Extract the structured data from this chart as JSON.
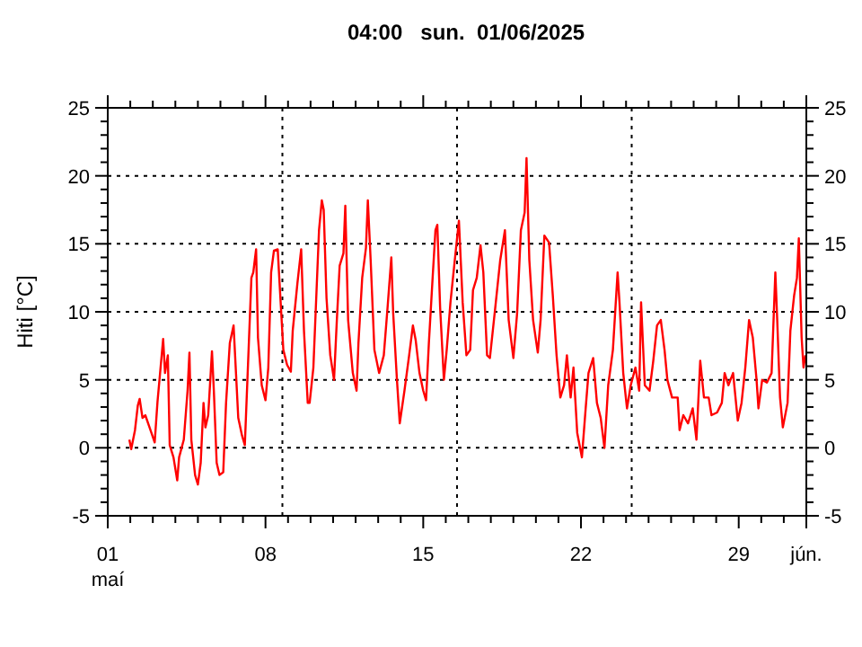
{
  "chart_data": {
    "type": "line",
    "title": "04:00   sun.  01/06/2025",
    "ylabel": "Hiti [°C]",
    "xlim": [
      "2025-05-01T00:00",
      "2025-06-01T00:00"
    ],
    "xticks": [
      {
        "value": "2025-05-01",
        "label": "01\nmaí"
      },
      {
        "value": "2025-05-02",
        "label": null
      },
      {
        "value": "2025-05-03",
        "label": null
      },
      {
        "value": "2025-05-04",
        "label": null
      },
      {
        "value": "2025-05-05",
        "label": null
      },
      {
        "value": "2025-05-06",
        "label": null
      },
      {
        "value": "2025-05-07",
        "label": null
      },
      {
        "value": "2025-05-08",
        "label": "08"
      },
      {
        "value": "2025-05-09",
        "label": null
      },
      {
        "value": "2025-05-10",
        "label": null
      },
      {
        "value": "2025-05-11",
        "label": null
      },
      {
        "value": "2025-05-12",
        "label": null
      },
      {
        "value": "2025-05-13",
        "label": null
      },
      {
        "value": "2025-05-14",
        "label": null
      },
      {
        "value": "2025-05-15",
        "label": "15"
      },
      {
        "value": "2025-05-16",
        "label": null
      },
      {
        "value": "2025-05-17",
        "label": null
      },
      {
        "value": "2025-05-18",
        "label": null
      },
      {
        "value": "2025-05-19",
        "label": null
      },
      {
        "value": "2025-05-20",
        "label": null
      },
      {
        "value": "2025-05-21",
        "label": null
      },
      {
        "value": "2025-05-22",
        "label": "22"
      },
      {
        "value": "2025-05-23",
        "label": null
      },
      {
        "value": "2025-05-24",
        "label": null
      },
      {
        "value": "2025-05-25",
        "label": null
      },
      {
        "value": "2025-05-26",
        "label": null
      },
      {
        "value": "2025-05-27",
        "label": null
      },
      {
        "value": "2025-05-28",
        "label": null
      },
      {
        "value": "2025-05-29",
        "label": "29"
      },
      {
        "value": "2025-05-30",
        "label": null
      },
      {
        "value": "2025-05-31",
        "label": null
      },
      {
        "value": "2025-06-01",
        "label": "jún."
      }
    ],
    "ylim": [
      -5,
      25
    ],
    "yticks": [
      -5,
      {
        "value": -4,
        "label": null
      },
      {
        "value": -3,
        "label": null
      },
      {
        "value": -2,
        "label": null
      },
      {
        "value": -1,
        "label": null
      },
      0,
      {
        "value": 1,
        "label": null
      },
      {
        "value": 2,
        "label": null
      },
      {
        "value": 3,
        "label": null
      },
      {
        "value": 4,
        "label": null
      },
      5,
      {
        "value": 6,
        "label": null
      },
      {
        "value": 7,
        "label": null
      },
      {
        "value": 8,
        "label": null
      },
      {
        "value": 9,
        "label": null
      },
      10,
      {
        "value": 11,
        "label": null
      },
      {
        "value": 12,
        "label": null
      },
      {
        "value": 13,
        "label": null
      },
      {
        "value": 14,
        "label": null
      },
      15,
      {
        "value": 16,
        "label": null
      },
      {
        "value": 17,
        "label": null
      },
      {
        "value": 18,
        "label": null
      },
      {
        "value": 19,
        "label": null
      },
      20,
      {
        "value": 21,
        "label": null
      },
      {
        "value": 22,
        "label": null
      },
      {
        "value": 23,
        "label": null
      },
      {
        "value": 24,
        "label": null
      },
      25
    ],
    "y2lim": [
      -5,
      25
    ],
    "y2ticks": [
      -5,
      0,
      5,
      10,
      15,
      20,
      25
    ],
    "grid": "y",
    "ref_lines": [
      {
        "axis": "x",
        "value": "2025-05-08T18:00",
        "line_style": "dotted"
      },
      {
        "axis": "x",
        "value": "2025-05-16T12:00",
        "line_style": "dotted"
      },
      {
        "axis": "x",
        "value": "2025-05-24T06:00",
        "line_style": "dotted"
      }
    ],
    "series": [
      {
        "color": "#ff0000",
        "x": [
          "2025-05-01T23:00",
          "2025-05-02T01:00",
          "2025-05-02T05:00",
          "2025-05-02T08:00",
          "2025-05-02T10:00",
          "2025-05-02T13:00",
          "2025-05-02T16:00",
          "2025-05-02T22:00",
          "2025-05-03T02:00",
          "2025-05-03T05:00",
          "2025-05-03T08:00",
          "2025-05-03T11:00",
          "2025-05-03T13:00",
          "2025-05-03T16:00",
          "2025-05-03T18:00",
          "2025-05-03T22:00",
          "2025-05-04T02:00",
          "2025-05-04T04:00",
          "2025-05-04T09:00",
          "2025-05-04T13:00",
          "2025-05-04T15:00",
          "2025-05-04T17:00",
          "2025-05-04T21:00",
          "2025-05-05T00:00",
          "2025-05-05T03:00",
          "2025-05-05T06:00",
          "2025-05-05T08:00",
          "2025-05-05T11:00",
          "2025-05-05T15:00",
          "2025-05-05T17:00",
          "2025-05-05T20:00",
          "2025-05-05T23:00",
          "2025-05-06T03:00",
          "2025-05-06T06:00",
          "2025-05-06T10:00",
          "2025-05-06T14:00",
          "2025-05-06T19:00",
          "2025-05-06T23:00",
          "2025-05-07T02:00",
          "2025-05-07T06:00",
          "2025-05-07T09:00",
          "2025-05-07T11:00",
          "2025-05-07T14:00",
          "2025-05-07T16:00",
          "2025-05-07T20:00",
          "2025-05-08T00:00",
          "2025-05-08T03:00",
          "2025-05-08T06:00",
          "2025-05-08T09:00",
          "2025-05-08T13:00",
          "2025-05-08T15:00",
          "2025-05-08T19:00",
          "2025-05-08T23:00",
          "2025-05-09T03:00",
          "2025-05-09T05:00",
          "2025-05-09T10:00",
          "2025-05-09T14:00",
          "2025-05-09T17:00",
          "2025-05-09T21:00",
          "2025-05-09T23:00",
          "2025-05-10T03:00",
          "2025-05-10T09:00",
          "2025-05-10T12:00",
          "2025-05-10T14:00",
          "2025-05-10T17:00",
          "2025-05-10T21:00",
          "2025-05-11T01:00",
          "2025-05-11T04:00",
          "2025-05-11T07:00",
          "2025-05-11T11:00",
          "2025-05-11T13:00",
          "2025-05-11T16:00",
          "2025-05-11T21:00",
          "2025-05-12T01:00",
          "2025-05-12T03:00",
          "2025-05-12T07:00",
          "2025-05-12T11:00",
          "2025-05-12T13:00",
          "2025-05-12T16:00",
          "2025-05-12T20:00",
          "2025-05-13T01:00",
          "2025-05-13T06:00",
          "2025-05-13T10:00",
          "2025-05-13T14:00",
          "2025-05-13T16:00",
          "2025-05-13T20:00",
          "2025-05-13T23:00",
          "2025-05-14T04:00",
          "2025-05-14T09:00",
          "2025-05-14T13:00",
          "2025-05-14T16:00",
          "2025-05-14T20:00",
          "2025-05-15T00:00",
          "2025-05-15T03:00",
          "2025-05-15T06:00",
          "2025-05-15T10:00",
          "2025-05-15T13:00",
          "2025-05-15T15:00",
          "2025-05-15T18:00",
          "2025-05-15T22:00",
          "2025-05-16T01:00",
          "2025-05-16T05:00",
          "2025-05-16T09:00",
          "2025-05-16T14:00",
          "2025-05-16T18:00",
          "2025-05-16T22:00",
          "2025-05-17T02:00",
          "2025-05-17T05:00",
          "2025-05-17T09:00",
          "2025-05-17T13:00",
          "2025-05-17T16:00",
          "2025-05-17T20:00",
          "2025-05-17T23:00",
          "2025-05-18T05:00",
          "2025-05-18T10:00",
          "2025-05-18T15:00",
          "2025-05-18T19:00",
          "2025-05-19T00:00",
          "2025-05-19T04:00",
          "2025-05-19T08:00",
          "2025-05-19T12:00",
          "2025-05-19T14:00",
          "2025-05-19T17:00",
          "2025-05-19T21:00",
          "2025-05-20T02:00",
          "2025-05-20T05:00",
          "2025-05-20T09:00",
          "2025-05-20T14:00",
          "2025-05-20T18:00",
          "2025-05-20T22:00",
          "2025-05-21T02:00",
          "2025-05-21T06:00",
          "2025-05-21T09:00",
          "2025-05-21T13:00",
          "2025-05-21T16:00",
          "2025-05-21T20:00",
          "2025-05-22T01:00",
          "2025-05-22T05:00",
          "2025-05-22T08:00",
          "2025-05-22T13:00",
          "2025-05-22T17:00",
          "2025-05-22T21:00",
          "2025-05-23T01:00",
          "2025-05-23T05:00",
          "2025-05-23T10:00",
          "2025-05-23T15:00",
          "2025-05-23T17:00",
          "2025-05-23T21:00",
          "2025-05-24T01:00",
          "2025-05-24T05:00",
          "2025-05-24T10:00",
          "2025-05-24T14:00",
          "2025-05-24T16:00",
          "2025-05-24T20:00",
          "2025-05-25T01:00",
          "2025-05-25T05:00",
          "2025-05-25T09:00",
          "2025-05-25T13:00",
          "2025-05-25T17:00",
          "2025-05-25T20:00",
          "2025-05-26T01:00",
          "2025-05-26T07:00",
          "2025-05-26T09:00",
          "2025-05-26T13:00",
          "2025-05-26T18:00",
          "2025-05-26T23:00",
          "2025-05-27T03:00",
          "2025-05-27T07:00",
          "2025-05-27T11:00",
          "2025-05-27T16:00",
          "2025-05-27T19:00",
          "2025-05-28T01:00",
          "2025-05-28T06:00",
          "2025-05-28T09:00",
          "2025-05-28T13:00",
          "2025-05-28T18:00",
          "2025-05-28T23:00",
          "2025-05-29T03:00",
          "2025-05-29T07:00",
          "2025-05-29T11:00",
          "2025-05-29T15:00",
          "2025-05-29T19:00",
          "2025-05-29T21:00",
          "2025-05-30T01:00",
          "2025-05-30T06:00",
          "2025-05-30T11:00",
          "2025-05-30T15:00",
          "2025-05-30T17:00",
          "2025-05-30T20:00",
          "2025-05-30T23:00",
          "2025-05-31T04:00",
          "2025-05-31T07:00",
          "2025-05-31T11:00",
          "2025-05-31T14:00",
          "2025-05-31T16:00",
          "2025-05-31T19:00",
          "2025-05-31T21:00",
          "2025-05-31T23:00"
        ],
        "values": [
          0.6,
          -0.1,
          1.3,
          3.1,
          3.6,
          2.2,
          2.4,
          1.2,
          0.4,
          3.4,
          5.7,
          8.0,
          5.5,
          6.8,
          0.2,
          -0.7,
          -2.4,
          -0.7,
          0.6,
          4.2,
          7.0,
          0.6,
          -2.0,
          -2.7,
          -1.1,
          3.3,
          1.5,
          2.4,
          7.1,
          4.2,
          -1.1,
          -2.0,
          -1.8,
          3.3,
          7.7,
          9.0,
          2.2,
          0.9,
          0.2,
          7.2,
          12.5,
          12.9,
          14.6,
          8.1,
          4.6,
          3.5,
          5.9,
          12.9,
          14.5,
          14.6,
          12.1,
          7.2,
          6.1,
          5.6,
          8.6,
          12.1,
          14.6,
          8.6,
          3.3,
          3.3,
          5.9,
          16.0,
          18.2,
          17.5,
          11.0,
          6.8,
          5.0,
          9.4,
          13.4,
          14.3,
          17.8,
          9.4,
          5.5,
          4.2,
          7.7,
          12.5,
          14.7,
          18.2,
          13.8,
          7.2,
          5.5,
          6.8,
          10.3,
          14.0,
          9.9,
          5.0,
          1.8,
          4.2,
          6.8,
          9.0,
          7.9,
          5.5,
          4.2,
          3.5,
          7.7,
          12.5,
          16.0,
          16.4,
          10.3,
          5.0,
          7.2,
          10.7,
          13.4,
          16.7,
          10.7,
          6.8,
          7.2,
          11.6,
          12.5,
          14.9,
          12.9,
          6.8,
          6.6,
          10.5,
          13.8,
          16.0,
          9.4,
          6.6,
          9.9,
          16.0,
          17.3,
          21.3,
          13.8,
          9.4,
          7.0,
          9.4,
          15.6,
          15.1,
          11.2,
          6.8,
          3.7,
          4.6,
          6.8,
          3.7,
          5.9,
          1.1,
          -0.7,
          2.9,
          5.5,
          6.6,
          3.3,
          2.2,
          0.0,
          4.6,
          7.2,
          12.9,
          10.7,
          5.5,
          2.9,
          4.6,
          5.9,
          4.2,
          10.7,
          4.6,
          4.2,
          6.4,
          9.0,
          9.4,
          7.2,
          5.0,
          3.7,
          3.7,
          1.3,
          2.4,
          1.8,
          2.9,
          0.6,
          6.4,
          3.7,
          3.7,
          2.4,
          2.6,
          3.3,
          5.5,
          4.6,
          5.5,
          2.0,
          3.3,
          5.9,
          9.4,
          8.1,
          5.0,
          2.9,
          5.0,
          4.8,
          5.5,
          12.9,
          9.4,
          3.7,
          1.5,
          3.3,
          8.6,
          11.2,
          12.5,
          15.4,
          8.1,
          5.9,
          6.8
        ]
      }
    ]
  }
}
